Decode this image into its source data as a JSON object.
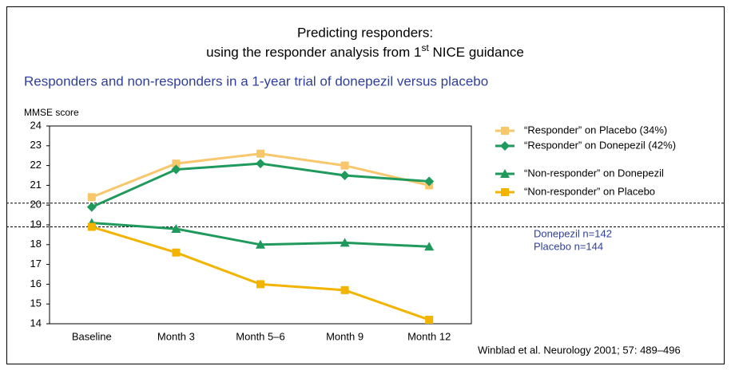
{
  "chart_data": {
    "type": "line",
    "title": [
      "Predicting responders:",
      [
        "using the responder analysis from 1",
        "st",
        " NICE guidance"
      ]
    ],
    "subtitle": "Responders and non-responders in a 1-year trial of donepezil versus placebo",
    "y_label": "MMSE score",
    "categories": [
      "Baseline",
      "Month 3",
      "Month 5–6",
      "Month 9",
      "Month 12"
    ],
    "ylim": [
      14,
      24
    ],
    "yticks": [
      14,
      15,
      16,
      17,
      18,
      19,
      20,
      21,
      22,
      23,
      24
    ],
    "reference_lines": [
      20.1,
      18.9
    ],
    "series": [
      {
        "name": "“Responder” on Placebo (34%)",
        "color": "#f8c76c",
        "marker": "square",
        "values": [
          20.4,
          22.1,
          22.6,
          22.0,
          21.0
        ]
      },
      {
        "name": "“Responder” on Donepezil (42%)",
        "color": "#1f9a5c",
        "marker": "diamond",
        "values": [
          19.9,
          21.8,
          22.1,
          21.5,
          21.2
        ]
      },
      {
        "name": "“Non-responder” on Donepezil",
        "color": "#1f9a5c",
        "marker": "triangle",
        "values": [
          19.1,
          18.8,
          18.0,
          18.1,
          17.9
        ]
      },
      {
        "name": "“Non-responder” on Placebo",
        "color": "#f2b400",
        "marker": "square",
        "values": [
          18.9,
          17.6,
          16.0,
          15.7,
          14.2
        ]
      }
    ],
    "annotations": [
      "Donepezil n=142",
      "Placebo n=144"
    ],
    "source": "Winblad et al. Neurology 2001; 57: 489–496"
  }
}
